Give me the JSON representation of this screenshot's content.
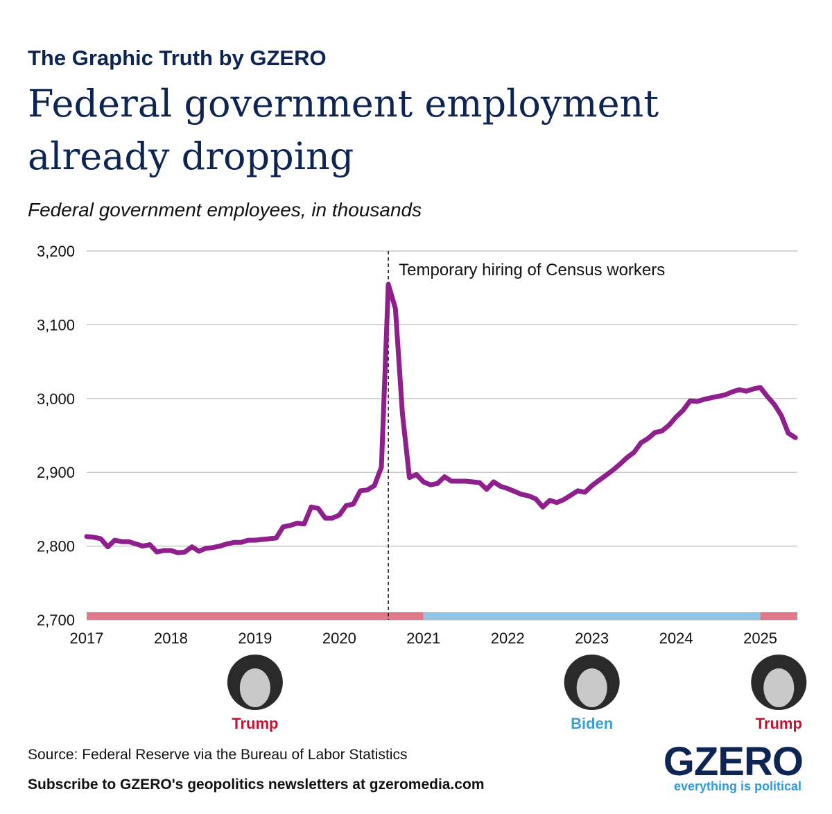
{
  "header": "The Graphic Truth by GZERO",
  "chart_data": {
    "type": "line",
    "title": "Federal government employment already dropping",
    "subtitle": "Federal government employees, in thousands",
    "color": "#8e1f8c",
    "x": [
      2017,
      2017.083,
      2017.167,
      2017.25,
      2017.333,
      2017.417,
      2017.5,
      2017.583,
      2017.667,
      2017.75,
      2017.833,
      2017.917,
      2018,
      2018.083,
      2018.167,
      2018.25,
      2018.333,
      2018.417,
      2018.5,
      2018.583,
      2018.667,
      2018.75,
      2018.833,
      2018.917,
      2019,
      2019.083,
      2019.167,
      2019.25,
      2019.333,
      2019.417,
      2019.5,
      2019.583,
      2019.667,
      2019.75,
      2019.833,
      2019.917,
      2020,
      2020.083,
      2020.167,
      2020.25,
      2020.333,
      2020.417,
      2020.5,
      2020.583,
      2020.667,
      2020.75,
      2020.833,
      2020.917,
      2021,
      2021.083,
      2021.167,
      2021.25,
      2021.333,
      2021.417,
      2021.5,
      2021.583,
      2021.667,
      2021.75,
      2021.833,
      2021.917,
      2022,
      2022.083,
      2022.167,
      2022.25,
      2022.333,
      2022.417,
      2022.5,
      2022.583,
      2022.667,
      2022.75,
      2022.833,
      2022.917,
      2023,
      2023.083,
      2023.167,
      2023.25,
      2023.333,
      2023.417,
      2023.5,
      2023.583,
      2023.667,
      2023.75,
      2023.833,
      2023.917,
      2024,
      2024.083,
      2024.167,
      2024.25,
      2024.333,
      2024.417,
      2024.5,
      2024.583,
      2024.667,
      2024.75,
      2024.833,
      2024.917,
      2025,
      2025.083,
      2025.167,
      2025.25,
      2025.333,
      2025.417
    ],
    "values": [
      2813,
      2812,
      2810,
      2799,
      2808,
      2806,
      2806,
      2803,
      2800,
      2802,
      2792,
      2794,
      2794,
      2791,
      2792,
      2799,
      2793,
      2797,
      2798,
      2800,
      2803,
      2805,
      2805,
      2808,
      2808,
      2809,
      2810,
      2811,
      2826,
      2828,
      2831,
      2830,
      2853,
      2851,
      2838,
      2838,
      2842,
      2855,
      2857,
      2875,
      2876,
      2882,
      2907,
      3155,
      3122,
      2980,
      2893,
      2897,
      2887,
      2883,
      2885,
      2894,
      2888,
      2888,
      2888,
      2887,
      2886,
      2877,
      2887,
      2881,
      2878,
      2874,
      2870,
      2868,
      2864,
      2853,
      2862,
      2859,
      2863,
      2869,
      2875,
      2873,
      2882,
      2889,
      2896,
      2903,
      2911,
      2920,
      2927,
      2940,
      2946,
      2954,
      2956,
      2964,
      2975,
      2984,
      2997,
      2996,
      2999,
      3001,
      3003,
      3005,
      3009,
      3012,
      3010,
      3013,
      3015,
      3003,
      2992,
      2977,
      2953,
      2947
    ],
    "xlim": [
      2017,
      2025.44
    ],
    "ylim": [
      2700,
      3200
    ],
    "xticks": [
      2017,
      2018,
      2019,
      2020,
      2021,
      2022,
      2023,
      2024,
      2025
    ],
    "yticks": [
      {
        "value": 2700,
        "label": "2,700"
      },
      {
        "value": 2800,
        "label": "2,800"
      },
      {
        "value": 2900,
        "label": "2,900"
      },
      {
        "value": 3000,
        "label": "3,000"
      },
      {
        "value": 3100,
        "label": "3,100"
      },
      {
        "value": 3200,
        "label": "3,200"
      }
    ],
    "grid": true,
    "annotation": {
      "text": "Temporary hiring of Census workers",
      "x": 2020.583
    },
    "terms": [
      {
        "name": "Trump",
        "start": 2017,
        "end": 2021,
        "color": "#e07a8a",
        "text_color": "#c8102e"
      },
      {
        "name": "Biden",
        "start": 2021,
        "end": 2025,
        "color": "#92c5e3",
        "text_color": "#3d9fd6"
      },
      {
        "name": "Trump",
        "start": 2025,
        "end": 2025.44,
        "color": "#e07a8a",
        "text_color": "#c8102e"
      }
    ]
  },
  "source": "Source: Federal Reserve via the Bureau of Labor Statistics",
  "footer": "Subscribe to GZERO's geopolitics newsletters at gzeromedia.com",
  "logo": {
    "name": "GZERO",
    "tagline": "everything is political"
  }
}
